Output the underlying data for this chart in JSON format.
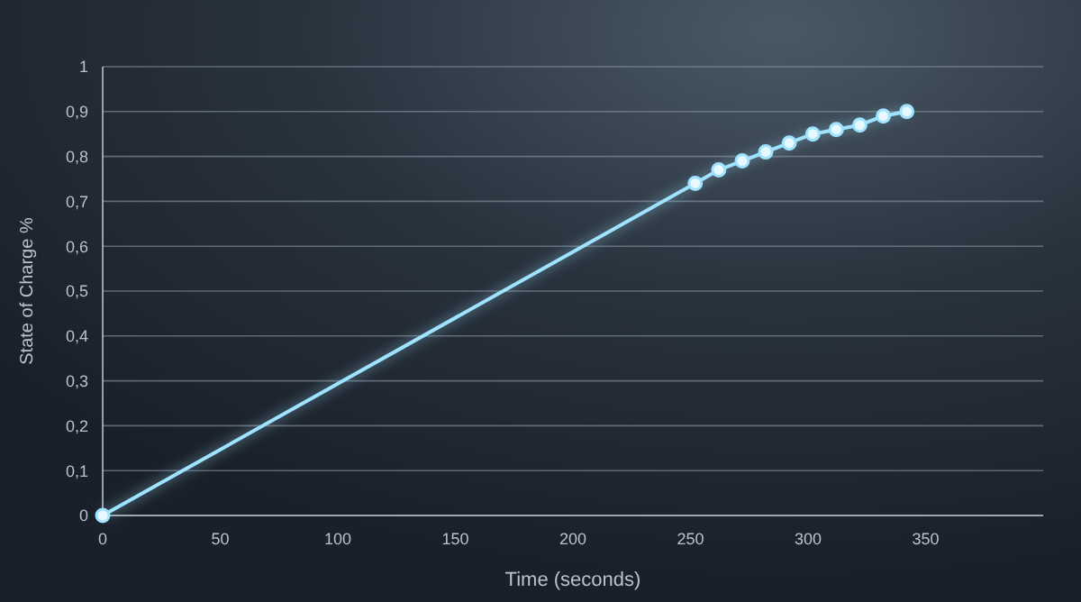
{
  "chart_data": {
    "type": "line",
    "xlabel": "Time (seconds)",
    "ylabel": "State of Charge %",
    "x": [
      0,
      252,
      262,
      272,
      282,
      292,
      302,
      312,
      322,
      332,
      342
    ],
    "series": [
      {
        "color": "#9fe3ff",
        "values": [
          0,
          0.74,
          0.77,
          0.79,
          0.81,
          0.83,
          0.85,
          0.86,
          0.87,
          0.89,
          0.9
        ]
      }
    ],
    "xlim": [
      0,
      400
    ],
    "xticks": [
      0,
      50,
      100,
      150,
      200,
      250,
      300,
      350
    ],
    "ylim": [
      0,
      1
    ],
    "yticks": [
      0,
      {
        "value": 0.1,
        "label": "0,1"
      },
      {
        "value": 0.2,
        "label": "0,2"
      },
      {
        "value": 0.3,
        "label": "0,3"
      },
      {
        "value": 0.4,
        "label": "0,4"
      },
      {
        "value": 0.5,
        "label": "0,5"
      },
      {
        "value": 0.6,
        "label": "0,6"
      },
      {
        "value": 0.7,
        "label": "0,7"
      },
      {
        "value": 0.8,
        "label": "0,8"
      },
      {
        "value": 0.9,
        "label": "0,9"
      },
      1
    ],
    "grid": "y",
    "marker": "circle",
    "line_style": "solid"
  }
}
